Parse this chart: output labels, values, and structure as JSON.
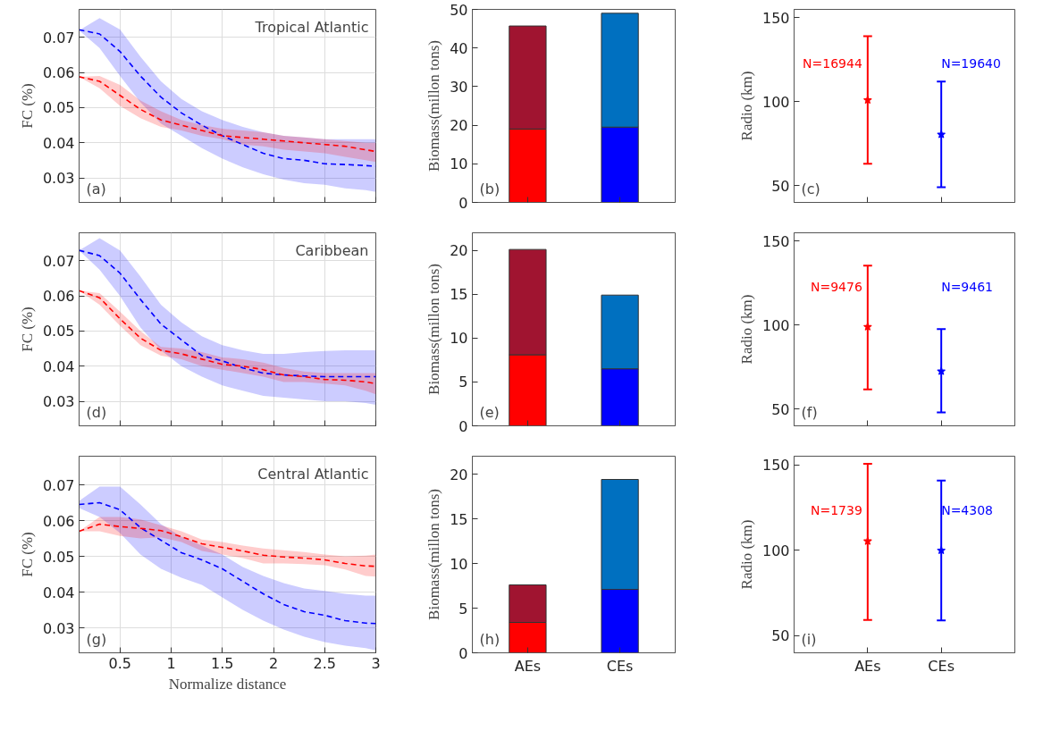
{
  "chart_data": [
    {
      "type": "line",
      "title": "Tropical Atlantic",
      "ylabel": "FC (%)",
      "annotations": [
        "(a)"
      ],
      "xlim": [
        0.1,
        3
      ],
      "ylim": [
        0.023,
        0.078
      ],
      "xticks": [
        0.5,
        1,
        1.5,
        2,
        2.5,
        3
      ],
      "yticks": [
        0.03,
        0.04,
        0.05,
        0.06,
        0.07
      ],
      "tick_labels": "y",
      "grid": true,
      "line_style": "dashed",
      "x": [
        0.1,
        0.3,
        0.5,
        0.7,
        0.9,
        1.1,
        1.3,
        1.5,
        1.7,
        1.9,
        2.1,
        2.3,
        2.5,
        2.7,
        2.9,
        3.0
      ],
      "series": [
        {
          "color": "#0000ff",
          "values": [
            0.0722,
            0.071,
            0.066,
            0.059,
            0.053,
            0.0485,
            0.045,
            0.042,
            0.0395,
            0.037,
            0.0355,
            0.035,
            0.034,
            0.0338,
            0.0335,
            0.0333
          ],
          "upper": [
            0.072,
            0.0755,
            0.0723,
            0.0645,
            0.0575,
            0.0525,
            0.049,
            0.0465,
            0.0445,
            0.043,
            0.042,
            0.0415,
            0.041,
            0.041,
            0.041,
            0.041
          ],
          "lower": [
            0.072,
            0.067,
            0.059,
            0.0515,
            0.0455,
            0.042,
            0.0385,
            0.0355,
            0.033,
            0.031,
            0.0295,
            0.0285,
            0.028,
            0.027,
            0.0265,
            0.026
          ]
        },
        {
          "color": "#ff0000",
          "values": [
            0.0588,
            0.0575,
            0.0535,
            0.0495,
            0.0465,
            0.045,
            0.0435,
            0.042,
            0.0415,
            0.041,
            0.0405,
            0.04,
            0.0395,
            0.039,
            0.038,
            0.0375
          ],
          "upper": [
            0.0588,
            0.059,
            0.0565,
            0.052,
            0.049,
            0.0465,
            0.045,
            0.044,
            0.0435,
            0.043,
            0.042,
            0.0415,
            0.041,
            0.0405,
            0.04,
            0.04
          ],
          "lower": [
            0.0588,
            0.0555,
            0.0505,
            0.047,
            0.0445,
            0.0435,
            0.042,
            0.041,
            0.0395,
            0.039,
            0.038,
            0.0375,
            0.037,
            0.036,
            0.035,
            0.0345
          ]
        }
      ]
    },
    {
      "type": "bar",
      "stacked": true,
      "ylabel": "Biomass(millon tons)",
      "annotations": [
        "(b)"
      ],
      "categories": [
        null,
        null
      ],
      "ylim": [
        0,
        50
      ],
      "yticks": [
        0,
        10,
        20,
        30,
        40,
        50
      ],
      "tick_labels": "y",
      "series": [
        {
          "colors": [
            "#ff0000",
            "#0000ff"
          ],
          "values": [
            19,
            19.5
          ]
        },
        {
          "colors": [
            "#a01430",
            "#0070c0"
          ],
          "values": [
            26.7,
            29.5
          ]
        }
      ]
    },
    {
      "type": "scatter",
      "marker": "star",
      "ylabel": "Radio (km)",
      "categories": [
        null,
        null
      ],
      "ylim": [
        40,
        155
      ],
      "yticks": [
        50,
        100,
        150
      ],
      "tick_labels": "y",
      "colors": [
        "#ff0000",
        "#0000ff"
      ],
      "values": [
        101,
        80.5
      ],
      "errors": [
        [
          63,
          139
        ],
        [
          49,
          112
        ]
      ],
      "annotations": [
        "(c)",
        "N=16944",
        "N=19640"
      ]
    },
    {
      "type": "line",
      "title": "Caribbean",
      "ylabel": "FC (%)",
      "annotations": [
        "(d)"
      ],
      "xlim": [
        0.1,
        3
      ],
      "ylim": [
        0.023,
        0.078
      ],
      "xticks": [
        0.5,
        1,
        1.5,
        2,
        2.5,
        3
      ],
      "yticks": [
        0.03,
        0.04,
        0.05,
        0.06,
        0.07
      ],
      "tick_labels": "y",
      "grid": true,
      "line_style": "dashed",
      "x": [
        0.1,
        0.3,
        0.5,
        0.7,
        0.9,
        1.1,
        1.3,
        1.5,
        1.7,
        1.9,
        2.1,
        2.3,
        2.5,
        2.7,
        2.9,
        3.0
      ],
      "series": [
        {
          "color": "#0000ff",
          "values": [
            0.073,
            0.0715,
            0.0665,
            0.059,
            0.052,
            0.0475,
            0.043,
            0.0415,
            0.0395,
            0.038,
            0.0375,
            0.0372,
            0.037,
            0.037,
            0.037,
            0.037
          ],
          "upper": [
            0.073,
            0.0765,
            0.073,
            0.0655,
            0.0575,
            0.0525,
            0.0485,
            0.046,
            0.0445,
            0.0435,
            0.0435,
            0.044,
            0.0443,
            0.0445,
            0.0445,
            0.0445
          ],
          "lower": [
            0.073,
            0.0675,
            0.06,
            0.051,
            0.0445,
            0.04,
            0.037,
            0.0345,
            0.033,
            0.0315,
            0.031,
            0.0305,
            0.03,
            0.03,
            0.0295,
            0.029
          ]
        },
        {
          "color": "#ff0000",
          "values": [
            0.0615,
            0.0595,
            0.0535,
            0.048,
            0.0445,
            0.0435,
            0.042,
            0.0405,
            0.04,
            0.039,
            0.0375,
            0.037,
            0.0362,
            0.036,
            0.0355,
            0.035
          ],
          "upper": [
            0.0615,
            0.0608,
            0.0555,
            0.05,
            0.0455,
            0.045,
            0.044,
            0.0425,
            0.042,
            0.041,
            0.0395,
            0.0385,
            0.038,
            0.038,
            0.038,
            0.038
          ],
          "lower": [
            0.0615,
            0.0575,
            0.0515,
            0.046,
            0.043,
            0.042,
            0.04,
            0.039,
            0.038,
            0.037,
            0.0355,
            0.0355,
            0.035,
            0.0345,
            0.033,
            0.032
          ]
        }
      ]
    },
    {
      "type": "bar",
      "stacked": true,
      "ylabel": "Biomass(millon tons)",
      "annotations": [
        "(e)"
      ],
      "categories": [
        null,
        null
      ],
      "ylim": [
        0,
        22
      ],
      "yticks": [
        0,
        5,
        10,
        15,
        20
      ],
      "tick_labels": "y",
      "series": [
        {
          "colors": [
            "#ff0000",
            "#0000ff"
          ],
          "values": [
            8.1,
            6.5
          ]
        },
        {
          "colors": [
            "#a01430",
            "#0070c0"
          ],
          "values": [
            12.0,
            8.4
          ]
        }
      ]
    },
    {
      "type": "scatter",
      "marker": "star",
      "ylabel": "Radio (km)",
      "categories": [
        null,
        null
      ],
      "ylim": [
        40,
        155
      ],
      "yticks": [
        50,
        100,
        150
      ],
      "tick_labels": "y",
      "colors": [
        "#ff0000",
        "#0000ff"
      ],
      "values": [
        99,
        72.5
      ],
      "errors": [
        [
          61.7,
          135.5
        ],
        [
          48,
          97.6
        ]
      ],
      "annotations": [
        "(f)",
        "N=9476",
        "N=9461"
      ]
    },
    {
      "type": "line",
      "title": "Central Atlantic",
      "ylabel": "FC (%)",
      "xlabel": "Normalize distance",
      "annotations": [
        "(g)"
      ],
      "xlim": [
        0.1,
        3
      ],
      "ylim": [
        0.023,
        0.078
      ],
      "xticks": [
        0.5,
        1,
        1.5,
        2,
        2.5,
        3
      ],
      "yticks": [
        0.03,
        0.04,
        0.05,
        0.06,
        0.07
      ],
      "grid": true,
      "line_style": "dashed",
      "x": [
        0.1,
        0.3,
        0.5,
        0.7,
        0.9,
        1.1,
        1.3,
        1.5,
        1.7,
        1.9,
        2.1,
        2.3,
        2.5,
        2.7,
        2.9,
        3.0
      ],
      "series": [
        {
          "color": "#0000ff",
          "values": [
            0.0645,
            0.065,
            0.063,
            0.058,
            0.0545,
            0.051,
            0.049,
            0.0465,
            0.043,
            0.0395,
            0.0365,
            0.0345,
            0.0335,
            0.032,
            0.0313,
            0.0312
          ],
          "upper": [
            0.0655,
            0.0695,
            0.0695,
            0.0645,
            0.059,
            0.0555,
            0.053,
            0.0505,
            0.047,
            0.0445,
            0.0425,
            0.041,
            0.0403,
            0.0395,
            0.039,
            0.039
          ],
          "lower": [
            0.0635,
            0.061,
            0.0565,
            0.0505,
            0.0465,
            0.044,
            0.042,
            0.0385,
            0.035,
            0.032,
            0.0295,
            0.0275,
            0.026,
            0.025,
            0.0243,
            0.0237
          ]
        },
        {
          "color": "#ff0000",
          "values": [
            0.057,
            0.059,
            0.0583,
            0.0578,
            0.0572,
            0.0555,
            0.0535,
            0.0525,
            0.0515,
            0.0503,
            0.0498,
            0.0495,
            0.049,
            0.048,
            0.0473,
            0.0472
          ],
          "upper": [
            0.057,
            0.061,
            0.061,
            0.0603,
            0.0587,
            0.057,
            0.0547,
            0.054,
            0.053,
            0.0522,
            0.0517,
            0.0512,
            0.0505,
            0.05,
            0.0502,
            0.0505
          ],
          "lower": [
            0.057,
            0.057,
            0.0557,
            0.055,
            0.0553,
            0.054,
            0.0515,
            0.0505,
            0.0495,
            0.048,
            0.048,
            0.0478,
            0.0475,
            0.0463,
            0.0445,
            0.0443
          ]
        }
      ]
    },
    {
      "type": "bar",
      "stacked": true,
      "ylabel": "Biomass(millon tons)",
      "annotations": [
        "(h)"
      ],
      "categories": [
        "AEs",
        "CEs"
      ],
      "ylim": [
        0,
        22
      ],
      "yticks": [
        0,
        5,
        10,
        15,
        20
      ],
      "series": [
        {
          "colors": [
            "#ff0000",
            "#0000ff"
          ],
          "values": [
            3.4,
            7.1
          ]
        },
        {
          "colors": [
            "#a01430",
            "#0070c0"
          ],
          "values": [
            4.2,
            12.3
          ]
        }
      ]
    },
    {
      "type": "scatter",
      "marker": "star",
      "ylabel": "Radio (km)",
      "categories": [
        "AEs",
        "CEs"
      ],
      "ylim": [
        40,
        155
      ],
      "yticks": [
        50,
        100,
        150
      ],
      "colors": [
        "#ff0000",
        "#0000ff"
      ],
      "values": [
        105.3,
        99.9
      ],
      "errors": [
        [
          59.2,
          150.5
        ],
        [
          58.9,
          140.8
        ]
      ],
      "annotations": [
        "(i)",
        "N=1739",
        "N=4308"
      ]
    }
  ]
}
